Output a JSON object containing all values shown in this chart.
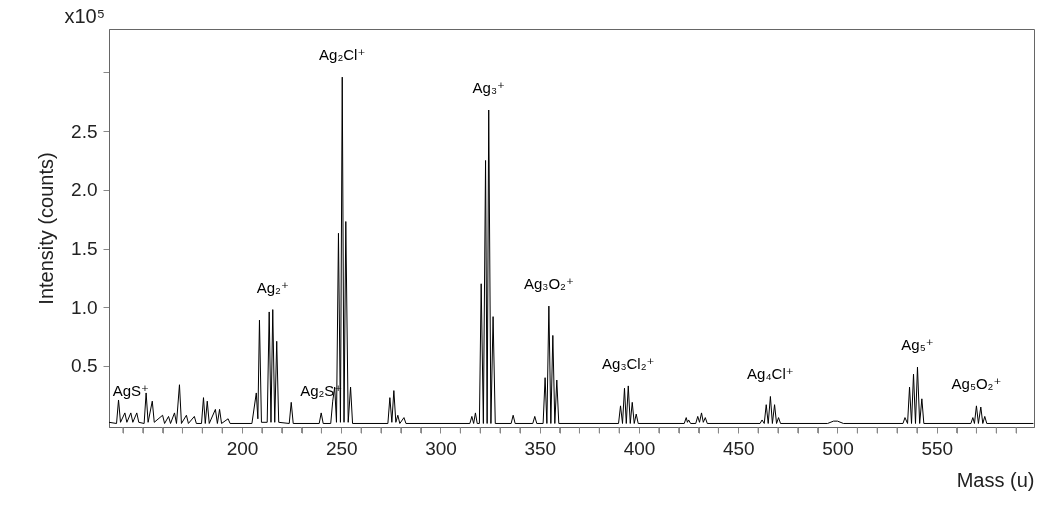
{
  "chart_data": {
    "type": "line",
    "xlabel": "Mass (u)",
    "ylabel": "Intensity (counts)",
    "color": "#000000",
    "xlim": [
      133,
      599
    ],
    "ylim": [
      -0.02,
      3.37
    ],
    "xticks": [
      {
        "value": 140,
        "label": null
      },
      {
        "value": 150,
        "label": null
      },
      {
        "value": 160,
        "label": null
      },
      {
        "value": 170,
        "label": null
      },
      {
        "value": 180,
        "label": null
      },
      {
        "value": 190,
        "label": null
      },
      200,
      {
        "value": 210,
        "label": null
      },
      {
        "value": 220,
        "label": null
      },
      {
        "value": 230,
        "label": null
      },
      {
        "value": 240,
        "label": null
      },
      250,
      {
        "value": 260,
        "label": null
      },
      {
        "value": 270,
        "label": null
      },
      {
        "value": 280,
        "label": null
      },
      {
        "value": 290,
        "label": null
      },
      300,
      {
        "value": 310,
        "label": null
      },
      {
        "value": 320,
        "label": null
      },
      {
        "value": 330,
        "label": null
      },
      {
        "value": 340,
        "label": null
      },
      350,
      {
        "value": 360,
        "label": null
      },
      {
        "value": 370,
        "label": null
      },
      {
        "value": 380,
        "label": null
      },
      {
        "value": 390,
        "label": null
      },
      400,
      {
        "value": 410,
        "label": null
      },
      {
        "value": 420,
        "label": null
      },
      {
        "value": 430,
        "label": null
      },
      {
        "value": 440,
        "label": null
      },
      450,
      {
        "value": 460,
        "label": null
      },
      {
        "value": 470,
        "label": null
      },
      {
        "value": 480,
        "label": null
      },
      {
        "value": 490,
        "label": null
      },
      500,
      {
        "value": 510,
        "label": null
      },
      {
        "value": 520,
        "label": null
      },
      {
        "value": 530,
        "label": null
      },
      {
        "value": 540,
        "label": null
      },
      550,
      {
        "value": 560,
        "label": null
      },
      {
        "value": 570,
        "label": null
      },
      {
        "value": 580,
        "label": null
      },
      {
        "value": 590,
        "label": null
      }
    ],
    "yticks": [
      {
        "value": 0.5,
        "label": "0.5"
      },
      {
        "value": 1,
        "label": "1.0"
      },
      {
        "value": 1.5,
        "label": "1.5"
      },
      {
        "value": 2,
        "label": "2.0"
      },
      {
        "value": 2.5,
        "label": "2.5"
      },
      {
        "value": 3,
        "label": null
      }
    ],
    "x": [
      133,
      136.8,
      137.8,
      138.8,
      141,
      142,
      144,
      145,
      147,
      148,
      150.7,
      151.7,
      152.7,
      154.8,
      155.8,
      160,
      161,
      163,
      164,
      166,
      167,
      168.5,
      169.5,
      172,
      173,
      176,
      177,
      179.6,
      180.6,
      181.5,
      182.5,
      183.5,
      186.6,
      187.6,
      188.7,
      189.7,
      193,
      194,
      205,
      207.2,
      208,
      208.8,
      209.8,
      212.7,
      213.7,
      214.6,
      215.5,
      216.5,
      217.5,
      218.5,
      223.8,
      224.8,
      225.8,
      238.9,
      239.9,
      240.9,
      244.7,
      245.7,
      246.7,
      247.6,
      248.6,
      249.6,
      250.5,
      251.4,
      252.3,
      253.5,
      254.7,
      255.7,
      273.5,
      274.5,
      275.5,
      276.5,
      277.5,
      278.5,
      279.5,
      281.6,
      282.6,
      314.8,
      315.8,
      316.7,
      317.6,
      318.5,
      319.6,
      320.5,
      321.6,
      322.7,
      323.5,
      324.3,
      325.4,
      326.5,
      327.6,
      335.6,
      336.6,
      337.6,
      346.5,
      347.5,
      348.5,
      351.7,
      352.7,
      353.6,
      354.6,
      355.6,
      356.6,
      357.6,
      358.6,
      359.6,
      389.7,
      390.7,
      391.7,
      392.7,
      393.6,
      394.6,
      395.6,
      396.6,
      397.6,
      398.6,
      399.6,
      422.8,
      423.8,
      424.4,
      425,
      426,
      428.6,
      429.6,
      430.5,
      431.5,
      432.4,
      433.4,
      434.4,
      461,
      462,
      463.1,
      464.1,
      465.1,
      466.2,
      467.2,
      468.3,
      469.3,
      470.3,
      471.3,
      495,
      498,
      500,
      503,
      533,
      534,
      535.3,
      536.3,
      537.3,
      538.3,
      539.3,
      540.3,
      541.4,
      542.5,
      543.5,
      567.2,
      568.2,
      569,
      570,
      571,
      572.2,
      573.2,
      574.2,
      575.2,
      598.5
    ],
    "values": [
      0.02,
      0.01,
      0.21,
      0.02,
      0.1,
      0.02,
      0.1,
      0.02,
      0.1,
      0.02,
      0.01,
      0.27,
      0.02,
      0.2,
      0.02,
      0.08,
      0.01,
      0.07,
      0.01,
      0.1,
      0.01,
      0.34,
      0.01,
      0.08,
      0.01,
      0.07,
      0.01,
      0.01,
      0.23,
      0.01,
      0.2,
      0.01,
      0.13,
      0.01,
      0.13,
      0.01,
      0.05,
      0.01,
      0.01,
      0.27,
      0.05,
      0.89,
      0.02,
      0.02,
      0.96,
      0.02,
      0.98,
      0.02,
      0.71,
      0.02,
      0.01,
      0.19,
      0.01,
      0.01,
      0.1,
      0.01,
      0.01,
      0.2,
      0.32,
      0.02,
      1.63,
      0.02,
      2.96,
      0.02,
      1.73,
      0.02,
      0.32,
      0.01,
      0.01,
      0.23,
      0.02,
      0.29,
      0.02,
      0.08,
      0.01,
      0.06,
      0.01,
      0.01,
      0.07,
      0.01,
      0.1,
      0.01,
      0.01,
      1.2,
      0.01,
      2.25,
      0.01,
      2.68,
      0.01,
      0.92,
      0.01,
      0.01,
      0.08,
      0.01,
      0.01,
      0.07,
      0.01,
      0.01,
      0.4,
      0.01,
      1.01,
      0.01,
      0.76,
      0.01,
      0.38,
      0.01,
      0.01,
      0.16,
      0.01,
      0.31,
      0.01,
      0.33,
      0.01,
      0.19,
      0.01,
      0.09,
      0.01,
      0.01,
      0.06,
      0.02,
      0.04,
      0.01,
      0.01,
      0.07,
      0.02,
      0.1,
      0.02,
      0.06,
      0.01,
      0.01,
      0.04,
      0.01,
      0.17,
      0.01,
      0.24,
      0.01,
      0.17,
      0.01,
      0.06,
      0.01,
      0.01,
      0.03,
      0.03,
      0.01,
      0.01,
      0.06,
      0.01,
      0.32,
      0.01,
      0.43,
      0.01,
      0.49,
      0.01,
      0.22,
      0.01,
      0.01,
      0.06,
      0.01,
      0.16,
      0.01,
      0.15,
      0.01,
      0.07,
      0.01,
      0.01
    ],
    "annotations": [
      "x10⁵",
      {
        "text": "AgS⁺",
        "x": 144,
        "y": 0.1
      },
      {
        "text": "Ag₂⁺",
        "x": 215.5,
        "y": 0.98
      },
      {
        "text": "Ag₂S⁺",
        "x": 239.9,
        "y": 0.1
      },
      {
        "text": "Ag₂Cl⁺",
        "x": 250.5,
        "y": 2.96
      },
      {
        "text": "Ag₃⁺",
        "x": 324.3,
        "y": 2.68
      },
      {
        "text": "Ag₃O₂⁺",
        "x": 354.6,
        "y": 1.01
      },
      {
        "text": "Ag₃Cl₂⁺",
        "x": 394.6,
        "y": 0.33
      },
      {
        "text": "Ag₄Cl⁺",
        "x": 466.2,
        "y": 0.24
      },
      {
        "text": "Ag₅⁺",
        "x": 540.3,
        "y": 0.49
      },
      {
        "text": "Ag₅O₂⁺",
        "x": 570,
        "y": 0.16
      }
    ]
  }
}
